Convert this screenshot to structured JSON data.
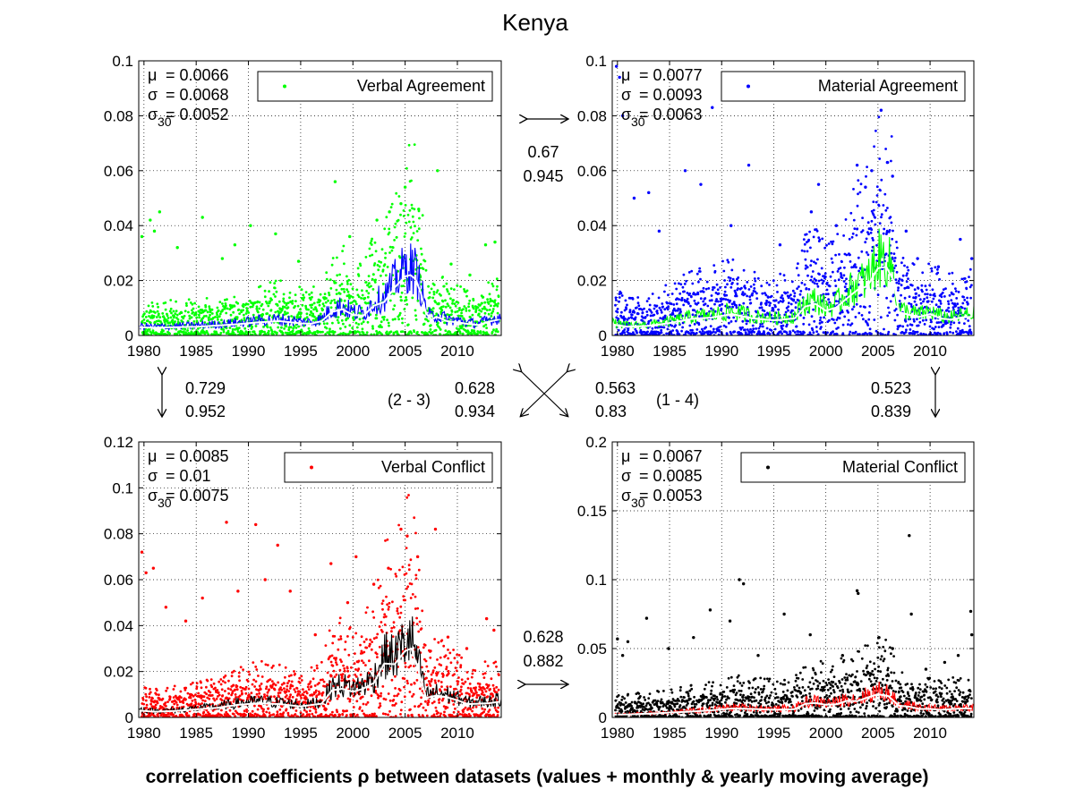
{
  "figure": {
    "title": "Kenya",
    "caption": "correlation coefficients ρ between datasets (values + monthly & yearly moving average)"
  },
  "colors": {
    "verbal_agreement": "#00ff00",
    "material_agreement": "#0000ff",
    "verbal_conflict": "#ff0000",
    "material_conflict": "#000000",
    "moving_avg_monthly_on_green": "#0000ff",
    "moving_avg_monthly_on_blue": "#00ff00",
    "moving_avg_monthly_on_red": "#000000",
    "moving_avg_monthly_on_black": "#ff0000",
    "moving_avg_yearly": "#ffffff"
  },
  "correlations": {
    "va_ma": {
      "rho_values": "0.67",
      "rho_avg": "0.945"
    },
    "va_vc": {
      "rho_values": "0.729",
      "rho_avg": "0.952"
    },
    "ma_mc": {
      "rho_values": "0.523",
      "rho_avg": "0.839"
    },
    "vc_mc": {
      "rho_values": "0.628",
      "rho_avg": "0.882"
    },
    "diag_2_3": {
      "label": "(2 - 3)",
      "rho_values": "0.628",
      "rho_avg": "0.934"
    },
    "diag_1_4": {
      "label": "(1 - 4)",
      "rho_values": "0.563",
      "rho_avg": "0.83"
    }
  },
  "chart_data": [
    {
      "type": "scatter",
      "legend": "Verbal Agreement",
      "legend_position": "top-right",
      "stats": {
        "mu": "0.0066",
        "sigma": "0.0068",
        "sigma30": "0.0052"
      },
      "xlim": [
        1979.5,
        2014.2
      ],
      "ylim": [
        0,
        0.1
      ],
      "xticks": [
        1980,
        1985,
        1990,
        1995,
        2000,
        2005,
        2010
      ],
      "yticks": [
        0,
        0.02,
        0.04,
        0.06,
        0.08,
        0.1
      ],
      "ytick_labels": [
        "0",
        "0.02",
        "0.04",
        "0.06",
        "0.08",
        "0.1"
      ],
      "grid": true,
      "yearly_avg": {
        "x": [
          1979.5,
          1981,
          1983,
          1985,
          1987,
          1989,
          1991,
          1993,
          1995,
          1996,
          1997,
          1998,
          1999,
          2000,
          2001,
          2002,
          2003,
          2004,
          2005,
          2005.5,
          2006,
          2006.5,
          2007,
          2007.5,
          2008,
          2009,
          2010,
          2011,
          2012,
          2013,
          2014
        ],
        "y": [
          0.003,
          0.0028,
          0.003,
          0.0032,
          0.0036,
          0.0041,
          0.0048,
          0.0052,
          0.0044,
          0.0043,
          0.0052,
          0.0086,
          0.0095,
          0.0075,
          0.0072,
          0.0108,
          0.0122,
          0.0175,
          0.0215,
          0.022,
          0.0205,
          0.0155,
          0.008,
          0.0058,
          0.0068,
          0.0052,
          0.0048,
          0.0042,
          0.0038,
          0.005,
          0.0058
        ]
      },
      "series": [
        {
          "kind": "scatter",
          "x": [
            1979.8,
            1980.6,
            1981.5,
            1985.6,
            1988.7,
            1992.6,
            1998.3,
            2002.3,
            2005.0,
            2008.1,
            2012.7,
            2013.6
          ],
          "y": [
            0.036,
            0.042,
            0.045,
            0.043,
            0.033,
            0.037,
            0.056,
            0.042,
            0.054,
            0.06,
            0.033,
            0.034
          ]
        },
        {
          "kind": "scatter",
          "x": [
            1981.0,
            1983.2,
            1987.5,
            1990.2,
            1994.8,
            1999.7,
            2003.5,
            2004.6,
            2006.3,
            2009.4,
            2011.2
          ],
          "y": [
            0.038,
            0.032,
            0.028,
            0.04,
            0.027,
            0.036,
            0.045,
            0.048,
            0.046,
            0.026,
            0.022
          ]
        }
      ]
    },
    {
      "type": "scatter",
      "legend": "Material Agreement",
      "legend_position": "top-right",
      "stats": {
        "mu": "0.0077",
        "sigma": "0.0093",
        "sigma30": "0.0063"
      },
      "xlim": [
        1979.5,
        2014.2
      ],
      "ylim": [
        0,
        0.1
      ],
      "xticks": [
        1980,
        1985,
        1990,
        1995,
        2000,
        2005,
        2010
      ],
      "yticks": [
        0,
        0.02,
        0.04,
        0.06,
        0.08,
        0.1
      ],
      "ytick_labels": [
        "0",
        "0.02",
        "0.04",
        "0.06",
        "0.08",
        "0.1"
      ],
      "grid": true,
      "yearly_avg": {
        "x": [
          1979.5,
          1981,
          1983,
          1985,
          1987,
          1989,
          1991,
          1993,
          1995,
          1997,
          1998,
          1999,
          2000,
          2001,
          2002,
          2003,
          2004,
          2005,
          2005.8,
          2006.5,
          2007,
          2008,
          2009,
          2010,
          2011,
          2012,
          2013,
          2014
        ],
        "y": [
          0.004,
          0.0032,
          0.0035,
          0.0045,
          0.006,
          0.0065,
          0.0078,
          0.0062,
          0.0055,
          0.0062,
          0.0105,
          0.0115,
          0.009,
          0.0102,
          0.0135,
          0.0165,
          0.018,
          0.0245,
          0.025,
          0.02,
          0.0085,
          0.0075,
          0.0068,
          0.0078,
          0.0062,
          0.0058,
          0.0065,
          0.0068
        ]
      },
      "series": [
        {
          "kind": "scatter",
          "x": [
            1979.9,
            1980.2,
            1980.5,
            1983.0,
            1986.5,
            1989.1,
            1992.6,
            1998.6,
            2003.0,
            2005.3,
            2005.9,
            2007.7,
            2012.9,
            2014.0
          ],
          "y": [
            0.098,
            0.094,
            0.08,
            0.052,
            0.06,
            0.083,
            0.062,
            0.045,
            0.062,
            0.082,
            0.063,
            0.038,
            0.035,
            0.028
          ]
        },
        {
          "kind": "scatter",
          "x": [
            1981.6,
            1984.0,
            1988.0,
            1990.9,
            1995.6,
            1999.3,
            2001.0,
            2003.8,
            2004.4,
            2006.4,
            2008.8,
            2010.8
          ],
          "y": [
            0.05,
            0.038,
            0.055,
            0.04,
            0.033,
            0.055,
            0.04,
            0.054,
            0.06,
            0.058,
            0.028,
            0.025
          ]
        }
      ]
    },
    {
      "type": "scatter",
      "legend": "Verbal Conflict",
      "legend_position": "top-right",
      "stats": {
        "mu": "0.0085",
        "sigma": "0.01",
        "sigma30": "0.0075"
      },
      "xlim": [
        1979.5,
        2014.2
      ],
      "ylim": [
        0,
        0.12
      ],
      "xticks": [
        1980,
        1985,
        1990,
        1995,
        2000,
        2005,
        2010
      ],
      "yticks": [
        0,
        0.02,
        0.04,
        0.06,
        0.08,
        0.1,
        0.12
      ],
      "ytick_labels": [
        "0",
        "0.02",
        "0.04",
        "0.06",
        "0.08",
        "0.1",
        "0.12"
      ],
      "grid": true,
      "yearly_avg": {
        "x": [
          1979.5,
          1981,
          1983,
          1985,
          1987,
          1989,
          1991,
          1993,
          1995,
          1997,
          1998,
          1999,
          2000,
          2001,
          2002,
          2003,
          2004,
          2005,
          2005.6,
          2006.3,
          2007,
          2008,
          2009,
          2010,
          2011,
          2012,
          2013,
          2014
        ],
        "y": [
          0.003,
          0.0025,
          0.0028,
          0.0035,
          0.0042,
          0.0055,
          0.0062,
          0.0058,
          0.0048,
          0.006,
          0.0118,
          0.0125,
          0.0112,
          0.0125,
          0.015,
          0.0235,
          0.0232,
          0.029,
          0.03,
          0.02,
          0.0085,
          0.0095,
          0.0088,
          0.0075,
          0.0058,
          0.006,
          0.0062,
          0.0068
        ]
      },
      "series": [
        {
          "kind": "scatter",
          "x": [
            1979.8,
            1980.2,
            1980.9,
            1984.0,
            1987.9,
            1990.7,
            1992.8,
            1997.9,
            2000.3,
            2004.6,
            2005.2,
            2007.9,
            2012.8,
            2013.5
          ],
          "y": [
            0.072,
            0.063,
            0.065,
            0.042,
            0.085,
            0.084,
            0.075,
            0.067,
            0.07,
            0.082,
            0.079,
            0.082,
            0.043,
            0.038
          ]
        },
        {
          "kind": "scatter",
          "x": [
            1982.1,
            1985.6,
            1989.0,
            1991.6,
            1994.0,
            1996.4,
            1999.5,
            2002.0,
            2003.4,
            2006.2,
            2009.1,
            2010.9
          ],
          "y": [
            0.048,
            0.052,
            0.055,
            0.06,
            0.055,
            0.036,
            0.05,
            0.058,
            0.065,
            0.07,
            0.035,
            0.03
          ]
        }
      ]
    },
    {
      "type": "scatter",
      "legend": "Material Conflict",
      "legend_position": "top-right",
      "stats": {
        "mu": "0.0067",
        "sigma": "0.0085",
        "sigma30": "0.0053"
      },
      "xlim": [
        1979.5,
        2014.2
      ],
      "ylim": [
        0,
        0.2
      ],
      "xticks": [
        1980,
        1985,
        1990,
        1995,
        2000,
        2005,
        2010
      ],
      "yticks": [
        0,
        0.05,
        0.1,
        0.15,
        0.2
      ],
      "ytick_labels": [
        "0",
        "0.05",
        "0.1",
        "0.15",
        "0.2"
      ],
      "grid": true,
      "yearly_avg": {
        "x": [
          1979.5,
          1981,
          1983,
          1985,
          1987,
          1989,
          1991,
          1993,
          1995,
          1997,
          1998,
          1999,
          2000,
          2001,
          2002,
          2003,
          2004,
          2005,
          2006,
          2007,
          2008,
          2009,
          2010,
          2011,
          2012,
          2013,
          2014
        ],
        "y": [
          0.002,
          0.0022,
          0.0028,
          0.0035,
          0.0042,
          0.0052,
          0.0065,
          0.0062,
          0.0055,
          0.006,
          0.0098,
          0.0105,
          0.0092,
          0.0095,
          0.012,
          0.0118,
          0.0145,
          0.0168,
          0.0155,
          0.0085,
          0.0078,
          0.0062,
          0.0062,
          0.0055,
          0.006,
          0.0065,
          0.0065
        ]
      },
      "series": [
        {
          "kind": "scatter",
          "x": [
            1980.0,
            1981.0,
            1982.8,
            1988.9,
            1991.7,
            1992.1,
            1996.0,
            2003.0,
            2003.1,
            2008.0,
            2008.2,
            2013.9,
            2014.0
          ],
          "y": [
            0.057,
            0.055,
            0.072,
            0.078,
            0.1,
            0.097,
            0.075,
            0.092,
            0.09,
            0.132,
            0.075,
            0.077,
            0.06
          ]
        },
        {
          "kind": "scatter",
          "x": [
            1980.5,
            1984.9,
            1987.3,
            1990.8,
            1993.5,
            1998.5,
            2001.6,
            2005.1,
            2006.4,
            2009.6,
            2011.4,
            2012.7
          ],
          "y": [
            0.045,
            0.05,
            0.058,
            0.07,
            0.045,
            0.06,
            0.045,
            0.058,
            0.05,
            0.035,
            0.04,
            0.045
          ]
        }
      ]
    }
  ]
}
